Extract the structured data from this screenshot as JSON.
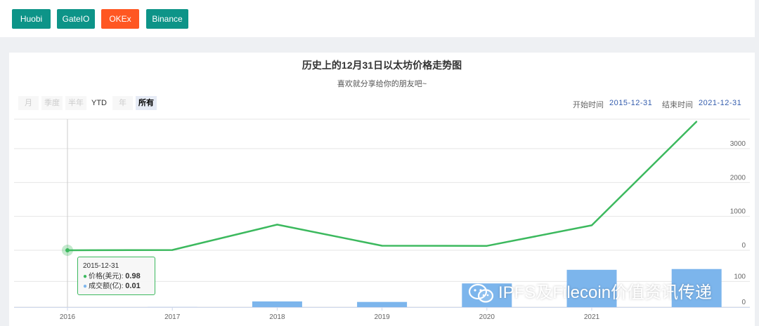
{
  "exchanges": {
    "buttons": [
      {
        "label": "Huobi",
        "color": "#0d9488",
        "active": false
      },
      {
        "label": "GateIO",
        "color": "#0d9488",
        "active": false
      },
      {
        "label": "OKEx",
        "color": "#ff5722",
        "active": true
      },
      {
        "label": "Binance",
        "color": "#0d9488",
        "active": false
      }
    ]
  },
  "range_selector": {
    "buttons": [
      "月",
      "季度",
      "半年",
      "YTD",
      "年",
      "所有"
    ],
    "selected": "所有",
    "start_label": "开始时间",
    "start_value": "2015-12-31",
    "end_label": "结束时间",
    "end_value": "2021-12-31"
  },
  "tooltip": {
    "date": "2015-12-31",
    "rows": [
      {
        "name": "价格(美元)",
        "value": "0.98",
        "color": "#3cb95e"
      },
      {
        "name": "成交额(亿)",
        "value": "0.01",
        "color": "#7cb5ec"
      }
    ]
  },
  "watermark": {
    "text": "IPFS及Filecoin价值资讯传递"
  },
  "chart_data": {
    "type": "line",
    "title": "历史上的12月31日以太坊价格走势图",
    "subtitle": "喜欢就分享给你的朋友吧~",
    "x": [
      "2015-12-31",
      "2016-12-31",
      "2017-12-31",
      "2018-12-31",
      "2019-12-31",
      "2020-12-31",
      "2021-12-31"
    ],
    "xticks": [
      "2016",
      "2017",
      "2018",
      "2019",
      "2020",
      "2021"
    ],
    "series": [
      {
        "name": "价格(美元)",
        "type": "line",
        "color": "#3cb95e",
        "values": [
          0.98,
          8,
          757,
          134,
          130,
          737,
          3800
        ]
      },
      {
        "name": "成交额(亿)",
        "type": "column",
        "color": "#7cb5ec",
        "values": [
          0.01,
          0.3,
          22,
          20,
          92,
          145,
          148
        ]
      }
    ],
    "price_axis": {
      "ticks": [
        "0",
        "1000",
        "2000",
        "3000"
      ],
      "range": [
        0,
        3870
      ]
    },
    "volume_axis": {
      "ticks": [
        "0",
        "100"
      ],
      "range": [
        0,
        150
      ]
    },
    "grid": true,
    "legend": "none"
  }
}
